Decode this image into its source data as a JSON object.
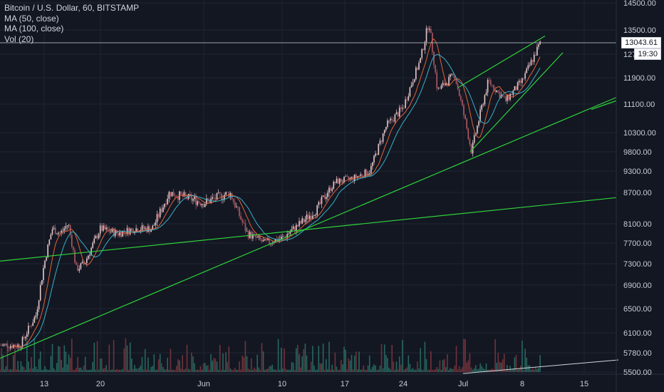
{
  "legend": {
    "symbol": "Bitcoin / U.S. Dollar, 60, BITSTAMP",
    "ma50": "MA (50, close)",
    "ma100": "MA (100, close)",
    "vol": "Vol (20)"
  },
  "price_badge": "13043.61",
  "time_badge": "19:30",
  "price_badge_partial": "12",
  "colors": {
    "background": "#131722",
    "up": "#e6c9cb",
    "down": "#b05a64",
    "ma50": "#e0643a",
    "ma100": "#3ab0c8",
    "trendline": "#2fd33a",
    "vol_up": "#2d7a6e",
    "vol_down": "#8a3a40",
    "grid": "#1f2433"
  },
  "chart_data": {
    "type": "candlestick",
    "title": "Bitcoin / U.S. Dollar, 60, BITSTAMP",
    "y_ticks": [
      "14500.00",
      "13500.00",
      "12700.00",
      "11900.00",
      "11100.00",
      "10300.00",
      "9800.00",
      "9300.00",
      "8700.00",
      "8100.00",
      "7700.00",
      "7300.00",
      "6900.00",
      "6500.00",
      "6100.00",
      "5780.00",
      "5500.00"
    ],
    "x_ticks": [
      "13",
      "20",
      "Jun",
      "10",
      "17",
      "24",
      "Jul",
      "8",
      "15"
    ],
    "last_price": 13043.61,
    "price_path": [
      {
        "t": "May 10",
        "p": 5900
      },
      {
        "t": "May 12",
        "p": 6400
      },
      {
        "t": "May 13",
        "p": 7300
      },
      {
        "t": "May 14",
        "p": 8000
      },
      {
        "t": "May 15",
        "p": 7900
      },
      {
        "t": "May 16",
        "p": 8100
      },
      {
        "t": "May 17",
        "p": 7200
      },
      {
        "t": "May 18",
        "p": 7300
      },
      {
        "t": "May 20",
        "p": 8000
      },
      {
        "t": "May 22",
        "p": 7900
      },
      {
        "t": "May 24",
        "p": 8000
      },
      {
        "t": "May 26",
        "p": 8000
      },
      {
        "t": "May 28",
        "p": 8700
      },
      {
        "t": "May 30",
        "p": 8600
      },
      {
        "t": "Jun 1",
        "p": 8500
      },
      {
        "t": "Jun 4",
        "p": 8700
      },
      {
        "t": "Jun 6",
        "p": 7900
      },
      {
        "t": "Jun 8",
        "p": 7700
      },
      {
        "t": "Jun 10",
        "p": 7800
      },
      {
        "t": "Jun 12",
        "p": 8100
      },
      {
        "t": "Jun 14",
        "p": 8400
      },
      {
        "t": "Jun 16",
        "p": 9000
      },
      {
        "t": "Jun 18",
        "p": 9100
      },
      {
        "t": "Jun 20",
        "p": 9300
      },
      {
        "t": "Jun 22",
        "p": 10500
      },
      {
        "t": "Jun 24",
        "p": 11000
      },
      {
        "t": "Jun 26",
        "p": 12500
      },
      {
        "t": "Jun 27",
        "p": 13800
      },
      {
        "t": "Jun 28",
        "p": 11500
      },
      {
        "t": "Jun 30",
        "p": 12000
      },
      {
        "t": "Jul 2",
        "p": 9800
      },
      {
        "t": "Jul 4",
        "p": 11800
      },
      {
        "t": "Jul 6",
        "p": 11200
      },
      {
        "t": "Jul 8",
        "p": 11800
      },
      {
        "t": "Jul 10",
        "p": 13043
      }
    ]
  }
}
